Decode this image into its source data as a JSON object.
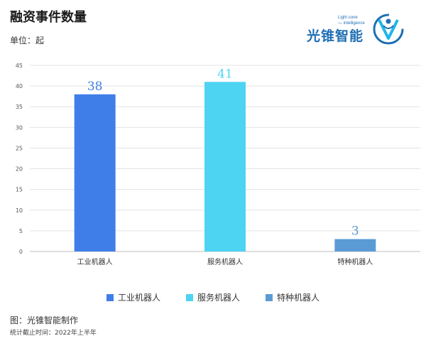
{
  "header": {
    "title": "融资事件数量",
    "unit": "单位：起"
  },
  "logo": {
    "wordmark": "光锥智能",
    "tagline_1": "Light cone",
    "tagline_2": "— intelligence",
    "icon": "light-cone-v-icon",
    "color": "#1f6fb5"
  },
  "chart_data": {
    "type": "bar",
    "categories": [
      "工业机器人",
      "服务机器人",
      "特种机器人"
    ],
    "values": [
      38,
      41,
      3
    ],
    "colors": [
      "#3f7ee8",
      "#4dd4f3",
      "#5b9bd5"
    ],
    "ylim": [
      0,
      45
    ],
    "yticks": [
      0,
      5,
      10,
      15,
      20,
      25,
      30,
      35,
      40,
      45
    ],
    "grid": true,
    "legend_position": "bottom"
  },
  "footer": {
    "source": "图：光锥智能制作",
    "note": "统计截止时间：2022年上半年"
  }
}
